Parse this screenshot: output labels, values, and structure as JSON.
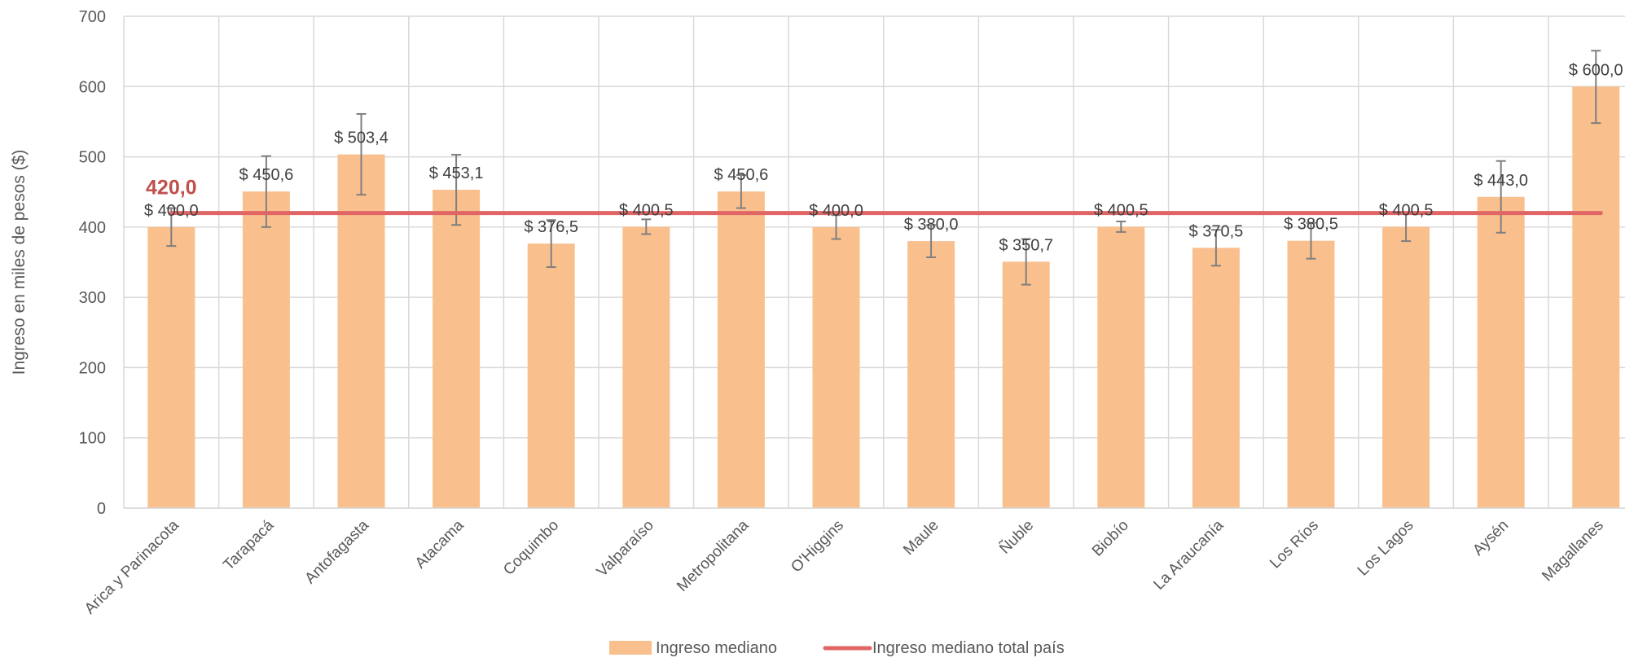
{
  "chart_data": {
    "type": "bar",
    "title": "",
    "xlabel": "",
    "ylabel": "Ingreso en miles de pesos ($)",
    "ylim": [
      0,
      700
    ],
    "yticks": [
      0,
      100,
      200,
      300,
      400,
      500,
      600,
      700
    ],
    "grid": true,
    "legend_position": "bottom",
    "categories": [
      "Arica y Parinacota",
      "Tarapacá",
      "Antofagasta",
      "Atacama",
      "Coquimbo",
      "Valparaíso",
      "Metropolitana",
      "O'Higgins",
      "Maule",
      "Ñuble",
      "Biobío",
      "La Araucanía",
      "Los Ríos",
      "Los Lagos",
      "Aysén",
      "Magallanes"
    ],
    "series": [
      {
        "name": "Ingreso mediano",
        "color": "#F9C08E",
        "values": [
          400.0,
          450.6,
          503.4,
          453.1,
          376.5,
          400.5,
          450.6,
          400.0,
          380.0,
          350.7,
          400.5,
          370.5,
          380.5,
          400.5,
          443.0,
          600.0
        ],
        "labels": [
          "$ 400,0",
          "$ 450,6",
          "$ 503,4",
          "$ 453,1",
          "$ 376,5",
          "$ 400,5",
          "$ 450,6",
          "$ 400,0",
          "$ 380,0",
          "$ 350,7",
          "$ 400,5",
          "$ 370,5",
          "$ 380,5",
          "$ 400,5",
          "$ 443,0",
          "$ 600,0"
        ],
        "error_low": [
          373,
          400,
          446,
          403,
          343,
          390,
          427,
          383,
          357,
          318,
          393,
          345,
          355,
          380,
          392,
          548
        ],
        "error_high": [
          427,
          501,
          561,
          503,
          410,
          411,
          474,
          417,
          403,
          383,
          408,
          396,
          406,
          421,
          494,
          651
        ]
      }
    ],
    "reference_line": {
      "name": "Ingreso mediano total país",
      "value": 420.0,
      "label": "420,0",
      "color": "#E06666",
      "label_color": "#C0504D"
    },
    "error_bar_color": "#7F7F7F",
    "grid_color": "#D9D9D9"
  }
}
